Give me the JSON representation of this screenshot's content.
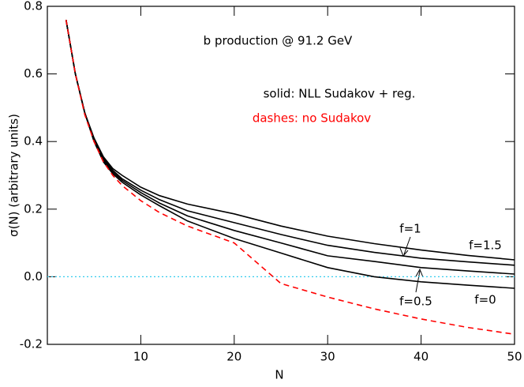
{
  "chart_data": {
    "type": "line",
    "xlabel": "N",
    "ylabel": "σ(N) (arbitrary units)",
    "annotations": [
      "b production @ 91.2 GeV",
      "solid: NLL Sudakov + reg.",
      "dashes: no Sudakov"
    ],
    "x": [
      2,
      3,
      4,
      5,
      6,
      7,
      8,
      10,
      12,
      15,
      20,
      25,
      30,
      35,
      40,
      45,
      50
    ],
    "series": [
      {
        "name": "f=1.5",
        "color": "#000000",
        "dash": "solid",
        "values": [
          0.76,
          0.6,
          0.485,
          0.41,
          0.355,
          0.32,
          0.3,
          0.265,
          0.24,
          0.215,
          0.186,
          0.15,
          0.12,
          0.098,
          0.079,
          0.063,
          0.05
        ]
      },
      {
        "name": "f=1",
        "color": "#000000",
        "dash": "solid",
        "values": [
          0.76,
          0.6,
          0.485,
          0.405,
          0.35,
          0.315,
          0.29,
          0.256,
          0.228,
          0.195,
          0.16,
          0.125,
          0.093,
          0.072,
          0.055,
          0.044,
          0.034
        ]
      },
      {
        "name": "f=0.5",
        "color": "#000000",
        "dash": "solid",
        "values": [
          0.76,
          0.6,
          0.485,
          0.4,
          0.345,
          0.31,
          0.285,
          0.249,
          0.218,
          0.18,
          0.137,
          0.1,
          0.062,
          0.045,
          0.027,
          0.017,
          0.008
        ]
      },
      {
        "name": "f=0",
        "color": "#000000",
        "dash": "solid",
        "values": [
          0.76,
          0.6,
          0.485,
          0.4,
          0.34,
          0.305,
          0.28,
          0.242,
          0.21,
          0.165,
          0.113,
          0.07,
          0.027,
          0.0,
          -0.015,
          -0.025,
          -0.034
        ]
      },
      {
        "color": "#ff0000",
        "dash": "dashed",
        "values": [
          0.76,
          0.6,
          0.48,
          0.4,
          0.34,
          0.3,
          0.27,
          0.225,
          0.19,
          0.15,
          0.1,
          -0.02,
          -0.06,
          -0.095,
          -0.125,
          -0.15,
          -0.17
        ]
      }
    ],
    "hline": {
      "value": 0,
      "color": "#33ccee"
    },
    "xlim": [
      0,
      50
    ],
    "xticks": [
      10,
      20,
      30,
      40,
      50
    ],
    "ylim": [
      -0.2,
      0.8
    ],
    "yticks": [
      -0.2,
      {
        "value": 0,
        "label": "0.0"
      },
      0.2,
      0.4,
      0.6,
      0.8
    ],
    "grid": false
  }
}
